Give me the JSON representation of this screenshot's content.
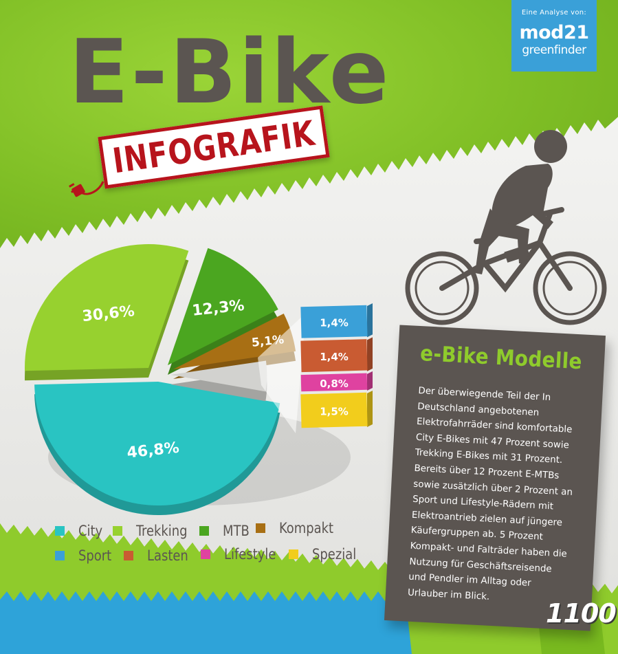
{
  "header": {
    "title": "E-Bike",
    "stamp": "INFOGRAFIK"
  },
  "brand": {
    "intro": "Eine Analyse von:",
    "logo_top": "mod21",
    "logo_bottom": "greenfinder"
  },
  "chart_data": {
    "type": "pie",
    "categories": [
      "City",
      "Trekking",
      "MTB",
      "Kompakt",
      "Sport",
      "Lasten",
      "Lifestyle",
      "Spezial"
    ],
    "values": [
      46.8,
      30.6,
      12.3,
      5.1,
      1.4,
      1.4,
      0.8,
      1.5
    ],
    "labels": [
      "46,8%",
      "30,6%",
      "12,3%",
      "5,1%",
      "1,4%",
      "1,4%",
      "0,8%",
      "1,5%"
    ],
    "colors": [
      "#29c4c2",
      "#97d12f",
      "#4ba620",
      "#a86f14",
      "#3aa0d8",
      "#c95b32",
      "#df42a0",
      "#f2cd1c"
    ],
    "breakout": [
      "Sport",
      "Lasten",
      "Lifestyle",
      "Spezial"
    ]
  },
  "legend": {
    "items": [
      {
        "label": "City",
        "color": "#29c4c2"
      },
      {
        "label": "Trekking",
        "color": "#97d12f"
      },
      {
        "label": "MTB",
        "color": "#4ba620"
      },
      {
        "label": "Kompakt",
        "color": "#a86f14"
      },
      {
        "label": "Sport",
        "color": "#3aa0d8"
      },
      {
        "label": "Lasten",
        "color": "#c95b32"
      },
      {
        "label": "Lifestyle",
        "color": "#df42a0"
      },
      {
        "label": "Spezial",
        "color": "#f2cd1c"
      }
    ]
  },
  "card": {
    "title": "e-Bike Modelle",
    "text": "Der überwiegende Teil der In Deutschland angebotenen Elektrofahrräder sind komfortable City E-Bikes mit 47 Prozent sowie Trekking E-Bikes mit 31 Prozent. Bereits über 12 Prozent E-MTBs sowie zusätzlich über 2 Prozent an Sport und Lifestyle-Rädern mit Elektroantrieb zielen auf jüngere Käufergruppen ab. 5 Prozent Kompakt- und Falträder haben die Nutzung für Geschäftsreisende und Pendler im Alltag oder Urlauber im Blick."
  },
  "footer": {
    "count": "1100"
  },
  "icons": [
    "plug-icon",
    "cyclist-icon"
  ]
}
